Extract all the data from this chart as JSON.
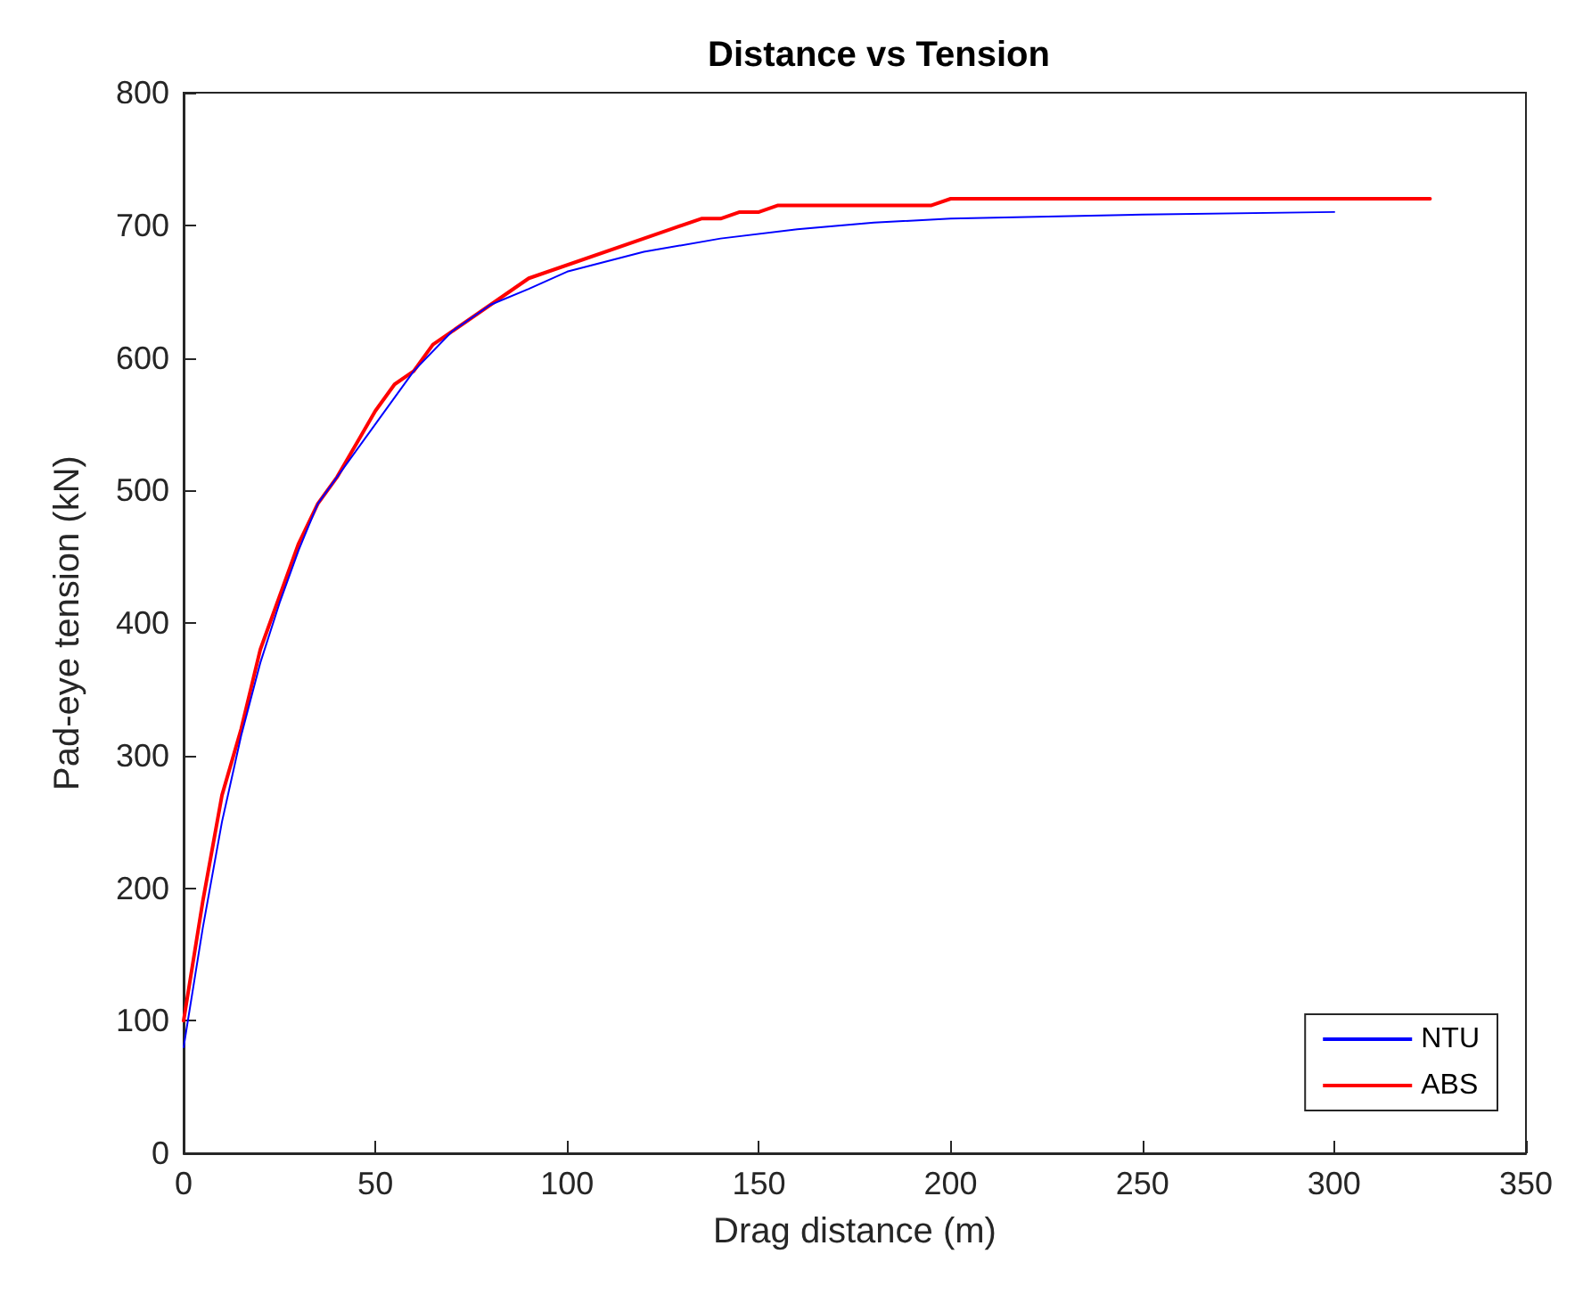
{
  "chart_data": {
    "type": "line",
    "title": "Distance vs Tension",
    "xlabel": "Drag distance (m)",
    "ylabel": "Pad-eye tension (kN)",
    "xlim": [
      0,
      350
    ],
    "xticks": [
      0,
      50,
      100,
      150,
      200,
      250,
      300,
      350
    ],
    "ylim": [
      0,
      800
    ],
    "yticks": [
      0,
      100,
      200,
      300,
      400,
      500,
      600,
      700,
      800
    ],
    "grid": false,
    "legend": "bottom right",
    "marker": "none",
    "line_style": "solid",
    "series": [
      {
        "name": "NTU",
        "color": "#0000ff",
        "x": [
          0,
          5,
          10,
          15,
          20,
          25,
          30,
          35,
          40,
          50,
          60,
          70,
          80,
          90,
          100,
          120,
          140,
          160,
          180,
          200,
          250,
          300
        ],
        "values": [
          80,
          170,
          250,
          315,
          370,
          415,
          455,
          490,
          510,
          550,
          590,
          620,
          640,
          652,
          665,
          680,
          690,
          697,
          702,
          705,
          708,
          710
        ]
      },
      {
        "name": "ABS",
        "color": "#ff0000",
        "x": [
          0,
          5,
          10,
          15,
          20,
          25,
          30,
          35,
          40,
          45,
          50,
          55,
          60,
          65,
          90,
          135,
          140,
          145,
          150,
          155,
          195,
          200,
          325
        ],
        "values": [
          100,
          190,
          270,
          320,
          380,
          420,
          460,
          490,
          510,
          535,
          560,
          580,
          590,
          610,
          660,
          705,
          705,
          710,
          710,
          715,
          715,
          720,
          720
        ]
      }
    ]
  }
}
